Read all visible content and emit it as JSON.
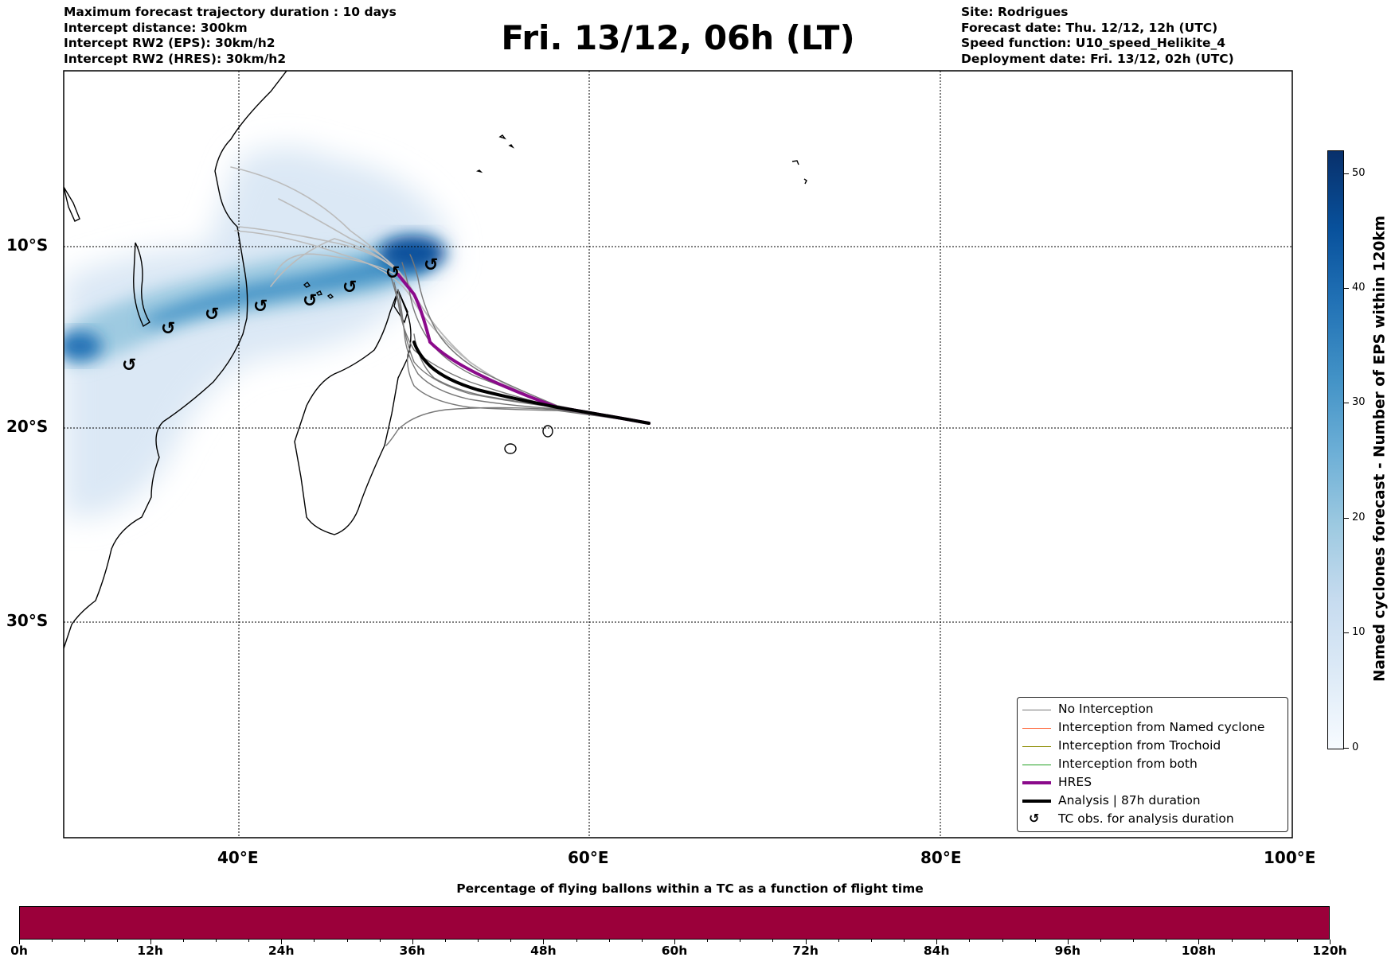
{
  "header": {
    "left_lines": [
      "Maximum forecast trajectory duration : 10 days",
      "Intercept distance: 300km",
      "Intercept RW2 (EPS):  30km/h2",
      "Intercept RW2 (HRES): 30km/h2"
    ],
    "title": "Fri. 13/12, 06h (LT)",
    "right_lines": [
      "Site: Rodrigues",
      "Forecast date: Thu. 12/12, 12h (UTC)",
      "Speed function: U10_speed_Helikite_4",
      "Deployment date: Fri. 13/12, 02h (UTC)"
    ]
  },
  "map": {
    "lat_labels": [
      "10°S",
      "20°S",
      "30°S"
    ],
    "lon_labels": [
      "40°E",
      "60°E",
      "80°E",
      "100°E"
    ],
    "colors": {
      "hres": "#8b0a8b",
      "analysis": "#000000",
      "no_interception": "#777777",
      "named_cyclone": "#ff6030",
      "trochoid": "#8b8b00",
      "both": "#20a020",
      "density": "#2171b5"
    }
  },
  "legend": {
    "items": [
      {
        "label": "No Interception",
        "color": "#777777",
        "style": "thin"
      },
      {
        "label": "Interception from Named cyclone",
        "color": "#ff6030",
        "style": "thin"
      },
      {
        "label": "Interception from Trochoid",
        "color": "#8b8b00",
        "style": "thin"
      },
      {
        "label": "Interception from both",
        "color": "#20a020",
        "style": "thin"
      },
      {
        "label": "HRES",
        "color": "#8b0a8b",
        "style": "thick"
      },
      {
        "label": "Analysis | 87h duration",
        "color": "#000000",
        "style": "thick"
      },
      {
        "label": "TC obs. for analysis duration",
        "icon": "cyclone-icon",
        "glyph": "↺"
      }
    ]
  },
  "colorbar": {
    "label": "Named cyclones forecast - Number of EPS within 120km",
    "ticks": [
      "0",
      "10",
      "20",
      "30",
      "40",
      "50"
    ],
    "colormap": "Blues"
  },
  "bottom_bar": {
    "title": "Percentage of flying ballons within a TC as a function of flight time",
    "fill_color": "#9b003a",
    "time_labels": [
      "0h",
      "12h",
      "24h",
      "36h",
      "48h",
      "60h",
      "72h",
      "84h",
      "96h",
      "108h",
      "120h"
    ]
  }
}
